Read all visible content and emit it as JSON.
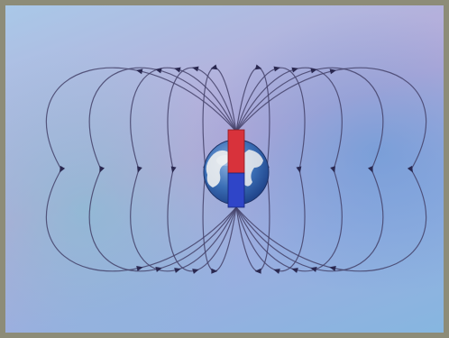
{
  "diagram": {
    "title": "",
    "north_caption": "",
    "south_caption": "",
    "description": ""
  },
  "colors": {
    "north_pole": "#d8323b",
    "south_pole": "#2f45c8",
    "field_lines": "#44426a",
    "ocean": "#3b6fb6",
    "land": "#eef0f0"
  },
  "icons": [
    "earth-globe-icon",
    "bar-magnet-icon",
    "field-arrow-icon"
  ]
}
